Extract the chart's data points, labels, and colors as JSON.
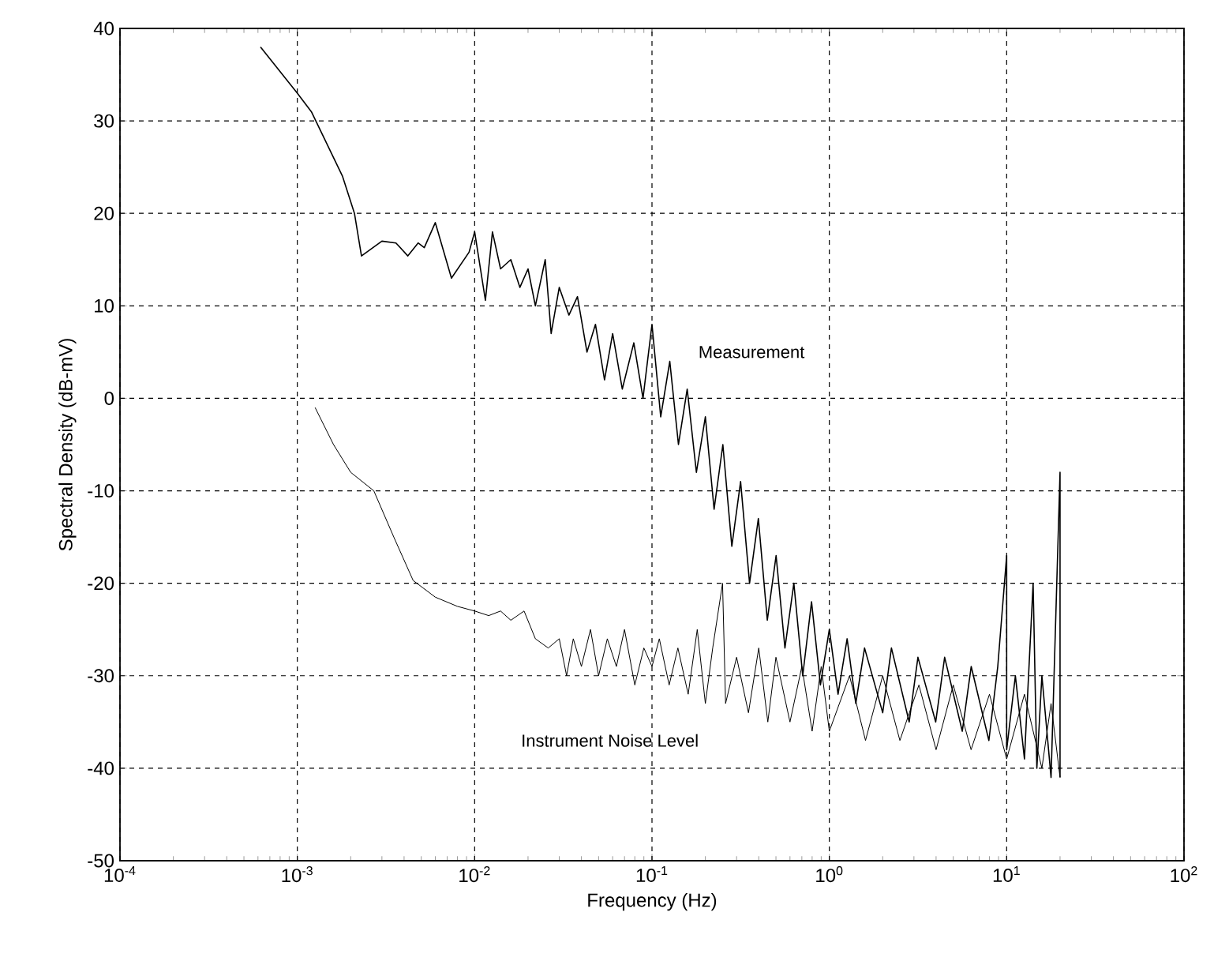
{
  "chart_data": {
    "type": "line",
    "xlabel": "Frequency (Hz)",
    "ylabel": "Spectral Density (dB-mV)",
    "log": "x",
    "grid": true,
    "marker": "none",
    "line_style": "solid",
    "xlim": [
      0.0001,
      100
    ],
    "ylim": [
      -50,
      40
    ],
    "xticks": [
      {
        "value": 0.0001,
        "label": "10$^{-4}$"
      },
      {
        "value": 0.001,
        "label": "10$^{-3}$"
      },
      {
        "value": 0.01,
        "label": "10$^{-2}$"
      },
      {
        "value": 0.1,
        "label": "10$^{-1}$"
      },
      {
        "value": 1,
        "label": "10$^{0}$"
      },
      {
        "value": 10,
        "label": "10$^{1}$"
      },
      {
        "value": 100,
        "label": "10$^{2}$"
      }
    ],
    "yticks": [
      -50,
      -40,
      -30,
      -20,
      -10,
      0,
      10,
      20,
      30,
      40
    ],
    "series": [
      {
        "name": "Measurement",
        "color": "#000000",
        "x": [
          0.00062,
          0.001,
          0.0012,
          0.0018,
          0.0021,
          0.0023,
          0.003,
          0.0036,
          0.0042,
          0.0048,
          0.0052,
          0.006,
          0.0074,
          0.0093,
          0.01,
          0.0115,
          0.0126,
          0.014,
          0.016,
          0.018,
          0.02,
          0.022,
          0.025,
          0.027,
          0.03,
          0.034,
          0.038,
          0.043,
          0.048,
          0.054,
          0.06,
          0.068,
          0.079,
          0.089,
          0.1,
          0.112,
          0.126,
          0.141,
          0.158,
          0.178,
          0.2,
          0.224,
          0.251,
          0.282,
          0.316,
          0.355,
          0.398,
          0.447,
          0.501,
          0.562,
          0.631,
          0.708,
          0.794,
          0.891,
          1,
          1.12,
          1.26,
          1.41,
          1.58,
          2.0,
          2.24,
          2.82,
          3.16,
          3.98,
          4.47,
          5.62,
          6.31,
          7.94,
          8.91,
          10,
          10,
          11.2,
          12.6,
          14.1,
          14.8,
          15.8,
          17.8,
          20,
          20
        ],
        "values": [
          38,
          33,
          31,
          24,
          20,
          15.4,
          17,
          16.8,
          15.4,
          16.8,
          16.3,
          19,
          13,
          15.8,
          18,
          10.6,
          18,
          14,
          15,
          12,
          14,
          10,
          15,
          7,
          12,
          9,
          11,
          5,
          8,
          2,
          7,
          1,
          6,
          0,
          8,
          -2,
          4,
          -5,
          1,
          -8,
          -2,
          -12,
          -5,
          -16,
          -9,
          -20,
          -13,
          -24,
          -17,
          -27,
          -20,
          -30,
          -22,
          -31,
          -25,
          -32,
          -26,
          -33,
          -27,
          -34,
          -27,
          -35,
          -28,
          -35,
          -28,
          -36,
          -29,
          -37,
          -29,
          -17,
          -38,
          -30,
          -39,
          -20,
          -40,
          -30,
          -41,
          -8,
          -41
        ]
      },
      {
        "name": "Instrument Noise Level",
        "color": "#000000",
        "x": [
          0.00126,
          0.0016,
          0.002,
          0.0027,
          0.0035,
          0.0045,
          0.006,
          0.008,
          0.01,
          0.012,
          0.014,
          0.016,
          0.019,
          0.022,
          0.026,
          0.03,
          0.033,
          0.036,
          0.04,
          0.045,
          0.05,
          0.056,
          0.063,
          0.07,
          0.08,
          0.09,
          0.1,
          0.11,
          0.125,
          0.14,
          0.16,
          0.18,
          0.2,
          0.22,
          0.25,
          0.26,
          0.3,
          0.35,
          0.4,
          0.45,
          0.5,
          0.6,
          0.7,
          0.8,
          0.9,
          1,
          1.3,
          1.6,
          2,
          2.5,
          3.2,
          4,
          5,
          6.3,
          8,
          10,
          12.6,
          15.8,
          17.8,
          20
        ],
        "values": [
          -1,
          -5,
          -8,
          -10,
          -15,
          -19.7,
          -21.5,
          -22.5,
          -23,
          -23.5,
          -23,
          -24,
          -23,
          -26,
          -27,
          -26,
          -30,
          -26,
          -29,
          -25,
          -30,
          -26,
          -29,
          -25,
          -31,
          -27,
          -29,
          -26,
          -31,
          -27,
          -32,
          -25,
          -33,
          -27,
          -20,
          -33,
          -28,
          -34,
          -27,
          -35,
          -28,
          -35,
          -29,
          -36,
          -29,
          -36,
          -30,
          -37,
          -30,
          -37,
          -31,
          -38,
          -31,
          -38,
          -32,
          -39,
          -32,
          -40,
          -33,
          -41
        ]
      }
    ]
  }
}
